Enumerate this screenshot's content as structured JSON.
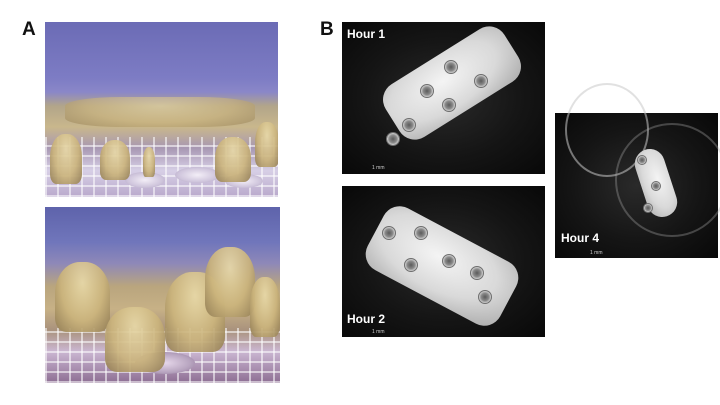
{
  "panels": {
    "a": {
      "letter": "A"
    },
    "b": {
      "letter": "B",
      "images": [
        {
          "time_label": "Hour 1",
          "scale_label": "1 mm"
        },
        {
          "time_label": "Hour 2",
          "scale_label": "1 mm"
        },
        {
          "time_label": "Hour 4",
          "scale_label": "1 mm"
        }
      ]
    }
  },
  "icons": {
    "photo_a_top": "coral-tank-photo",
    "photo_a_bottom": "coral-tank-photo",
    "photo_b_hour1": "coral-fragment-micrograph",
    "photo_b_hour2": "coral-fragment-micrograph",
    "photo_b_hour4": "coral-fragment-micrograph"
  },
  "colors": {
    "tank_water": "#6b6bb5",
    "coral": "#cbb47c",
    "micrograph_background": "#0c0c0c",
    "fragment": "#d9d9d9"
  }
}
